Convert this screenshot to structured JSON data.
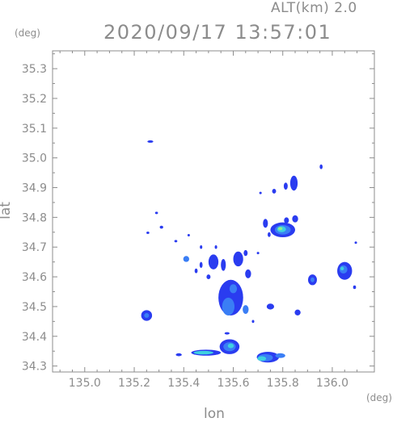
{
  "header": {
    "altitude_label": "ALT(km)  2.0",
    "timestamp": "2020/09/17 13:57:01"
  },
  "chart_data": {
    "type": "heatmap",
    "title": "2020/09/17 13:57:01",
    "xlabel": "lon",
    "ylabel": "lat",
    "x_unit": "(deg)",
    "y_unit": "(deg)",
    "xlim": [
      134.87,
      136.17
    ],
    "ylim": [
      34.28,
      35.36
    ],
    "x_ticks": [
      135.0,
      135.2,
      135.4,
      135.6,
      135.8,
      136.0
    ],
    "x_tick_labels": [
      "135.0",
      "135.2",
      "135.4",
      "135.6",
      "135.8",
      "136.0"
    ],
    "y_ticks": [
      34.3,
      34.4,
      34.5,
      34.6,
      34.7,
      34.8,
      34.9,
      35.0,
      35.1,
      35.2,
      35.3
    ],
    "y_tick_labels": [
      "34.3",
      "34.4",
      "34.5",
      "34.6",
      "34.7",
      "34.8",
      "34.9",
      "35.0",
      "35.1",
      "35.2",
      "35.3"
    ],
    "colors": {
      "low": "#2a3cf0",
      "mid": "#3a7ef5",
      "high": "#3fd0e0",
      "peak": "#8ef08a"
    },
    "echo_cells": [
      {
        "lon": 135.265,
        "lat": 35.055,
        "rlon": 0.012,
        "rlat": 0.004,
        "level": "low"
      },
      {
        "lon": 135.955,
        "lat": 34.97,
        "rlon": 0.006,
        "rlat": 0.008,
        "level": "low"
      },
      {
        "lon": 135.845,
        "lat": 34.915,
        "rlon": 0.015,
        "rlat": 0.025,
        "level": "low"
      },
      {
        "lon": 135.812,
        "lat": 34.905,
        "rlon": 0.008,
        "rlat": 0.012,
        "level": "low"
      },
      {
        "lon": 135.765,
        "lat": 34.888,
        "rlon": 0.008,
        "rlat": 0.008,
        "level": "low"
      },
      {
        "lon": 135.71,
        "lat": 34.882,
        "rlon": 0.005,
        "rlat": 0.004,
        "level": "low"
      },
      {
        "lon": 135.29,
        "lat": 34.815,
        "rlon": 0.006,
        "rlat": 0.004,
        "level": "low"
      },
      {
        "lon": 135.31,
        "lat": 34.767,
        "rlon": 0.007,
        "rlat": 0.005,
        "level": "low"
      },
      {
        "lon": 135.255,
        "lat": 34.748,
        "rlon": 0.006,
        "rlat": 0.004,
        "level": "low"
      },
      {
        "lon": 135.85,
        "lat": 34.795,
        "rlon": 0.012,
        "rlat": 0.012,
        "level": "low"
      },
      {
        "lon": 135.815,
        "lat": 34.79,
        "rlon": 0.01,
        "rlat": 0.01,
        "level": "low"
      },
      {
        "lon": 135.8,
        "lat": 34.758,
        "rlon": 0.05,
        "rlat": 0.025,
        "level": "low"
      },
      {
        "lon": 135.8,
        "lat": 34.758,
        "rlon": 0.032,
        "rlat": 0.016,
        "level": "mid"
      },
      {
        "lon": 135.795,
        "lat": 34.76,
        "rlon": 0.018,
        "rlat": 0.01,
        "level": "high"
      },
      {
        "lon": 135.79,
        "lat": 34.762,
        "rlon": 0.009,
        "rlat": 0.005,
        "level": "peak"
      },
      {
        "lon": 135.73,
        "lat": 34.78,
        "rlon": 0.01,
        "rlat": 0.015,
        "level": "low"
      },
      {
        "lon": 135.745,
        "lat": 34.742,
        "rlon": 0.006,
        "rlat": 0.008,
        "level": "low"
      },
      {
        "lon": 136.095,
        "lat": 34.715,
        "rlon": 0.005,
        "rlat": 0.004,
        "level": "low"
      },
      {
        "lon": 135.368,
        "lat": 34.72,
        "rlon": 0.006,
        "rlat": 0.004,
        "level": "low"
      },
      {
        "lon": 135.42,
        "lat": 34.74,
        "rlon": 0.005,
        "rlat": 0.004,
        "level": "low"
      },
      {
        "lon": 135.47,
        "lat": 34.7,
        "rlon": 0.005,
        "rlat": 0.006,
        "level": "low"
      },
      {
        "lon": 135.53,
        "lat": 34.7,
        "rlon": 0.005,
        "rlat": 0.006,
        "level": "low"
      },
      {
        "lon": 135.41,
        "lat": 34.66,
        "rlon": 0.012,
        "rlat": 0.01,
        "level": "mid"
      },
      {
        "lon": 135.47,
        "lat": 34.64,
        "rlon": 0.006,
        "rlat": 0.01,
        "level": "low"
      },
      {
        "lon": 135.52,
        "lat": 34.65,
        "rlon": 0.02,
        "rlat": 0.025,
        "level": "low"
      },
      {
        "lon": 135.56,
        "lat": 34.64,
        "rlon": 0.01,
        "rlat": 0.02,
        "level": "low"
      },
      {
        "lon": 135.62,
        "lat": 34.66,
        "rlon": 0.02,
        "rlat": 0.025,
        "level": "low"
      },
      {
        "lon": 135.66,
        "lat": 34.61,
        "rlon": 0.012,
        "rlat": 0.015,
        "level": "low"
      },
      {
        "lon": 135.65,
        "lat": 34.68,
        "rlon": 0.008,
        "rlat": 0.01,
        "level": "low"
      },
      {
        "lon": 135.7,
        "lat": 34.68,
        "rlon": 0.005,
        "rlat": 0.004,
        "level": "low"
      },
      {
        "lon": 135.45,
        "lat": 34.62,
        "rlon": 0.006,
        "rlat": 0.008,
        "level": "low"
      },
      {
        "lon": 135.5,
        "lat": 34.6,
        "rlon": 0.008,
        "rlat": 0.008,
        "level": "low"
      },
      {
        "lon": 135.92,
        "lat": 34.59,
        "rlon": 0.018,
        "rlat": 0.018,
        "level": "low"
      },
      {
        "lon": 135.92,
        "lat": 34.59,
        "rlon": 0.008,
        "rlat": 0.008,
        "level": "mid"
      },
      {
        "lon": 136.05,
        "lat": 34.62,
        "rlon": 0.03,
        "rlat": 0.03,
        "level": "low"
      },
      {
        "lon": 136.045,
        "lat": 34.625,
        "rlon": 0.016,
        "rlat": 0.014,
        "level": "mid"
      },
      {
        "lon": 136.04,
        "lat": 34.628,
        "rlon": 0.007,
        "rlat": 0.006,
        "level": "high"
      },
      {
        "lon": 136.09,
        "lat": 34.565,
        "rlon": 0.006,
        "rlat": 0.006,
        "level": "low"
      },
      {
        "lon": 135.59,
        "lat": 34.53,
        "rlon": 0.05,
        "rlat": 0.06,
        "level": "low"
      },
      {
        "lon": 135.58,
        "lat": 34.5,
        "rlon": 0.025,
        "rlat": 0.03,
        "level": "mid"
      },
      {
        "lon": 135.6,
        "lat": 34.56,
        "rlon": 0.015,
        "rlat": 0.015,
        "level": "mid"
      },
      {
        "lon": 135.65,
        "lat": 34.49,
        "rlon": 0.012,
        "rlat": 0.015,
        "level": "mid"
      },
      {
        "lon": 135.68,
        "lat": 34.45,
        "rlon": 0.005,
        "rlat": 0.005,
        "level": "low"
      },
      {
        "lon": 135.75,
        "lat": 34.5,
        "rlon": 0.015,
        "rlat": 0.01,
        "level": "low"
      },
      {
        "lon": 135.86,
        "lat": 34.48,
        "rlon": 0.012,
        "rlat": 0.01,
        "level": "low"
      },
      {
        "lon": 135.25,
        "lat": 34.47,
        "rlon": 0.022,
        "rlat": 0.018,
        "level": "low"
      },
      {
        "lon": 135.25,
        "lat": 34.47,
        "rlon": 0.01,
        "rlat": 0.008,
        "level": "mid"
      },
      {
        "lon": 135.575,
        "lat": 34.41,
        "rlon": 0.01,
        "rlat": 0.004,
        "level": "low"
      },
      {
        "lon": 135.585,
        "lat": 34.365,
        "rlon": 0.04,
        "rlat": 0.025,
        "level": "low"
      },
      {
        "lon": 135.585,
        "lat": 34.365,
        "rlon": 0.025,
        "rlat": 0.015,
        "level": "mid"
      },
      {
        "lon": 135.59,
        "lat": 34.368,
        "rlon": 0.012,
        "rlat": 0.008,
        "level": "high"
      },
      {
        "lon": 135.49,
        "lat": 34.345,
        "rlon": 0.06,
        "rlat": 0.01,
        "level": "low"
      },
      {
        "lon": 135.48,
        "lat": 34.345,
        "rlon": 0.04,
        "rlat": 0.006,
        "level": "high"
      },
      {
        "lon": 135.38,
        "lat": 34.338,
        "rlon": 0.012,
        "rlat": 0.005,
        "level": "low"
      },
      {
        "lon": 135.74,
        "lat": 34.33,
        "rlon": 0.045,
        "rlat": 0.018,
        "level": "low"
      },
      {
        "lon": 135.73,
        "lat": 34.328,
        "rlon": 0.03,
        "rlat": 0.012,
        "level": "mid"
      },
      {
        "lon": 135.715,
        "lat": 34.325,
        "rlon": 0.018,
        "rlat": 0.008,
        "level": "high"
      },
      {
        "lon": 135.79,
        "lat": 34.335,
        "rlon": 0.02,
        "rlat": 0.008,
        "level": "mid"
      }
    ]
  }
}
